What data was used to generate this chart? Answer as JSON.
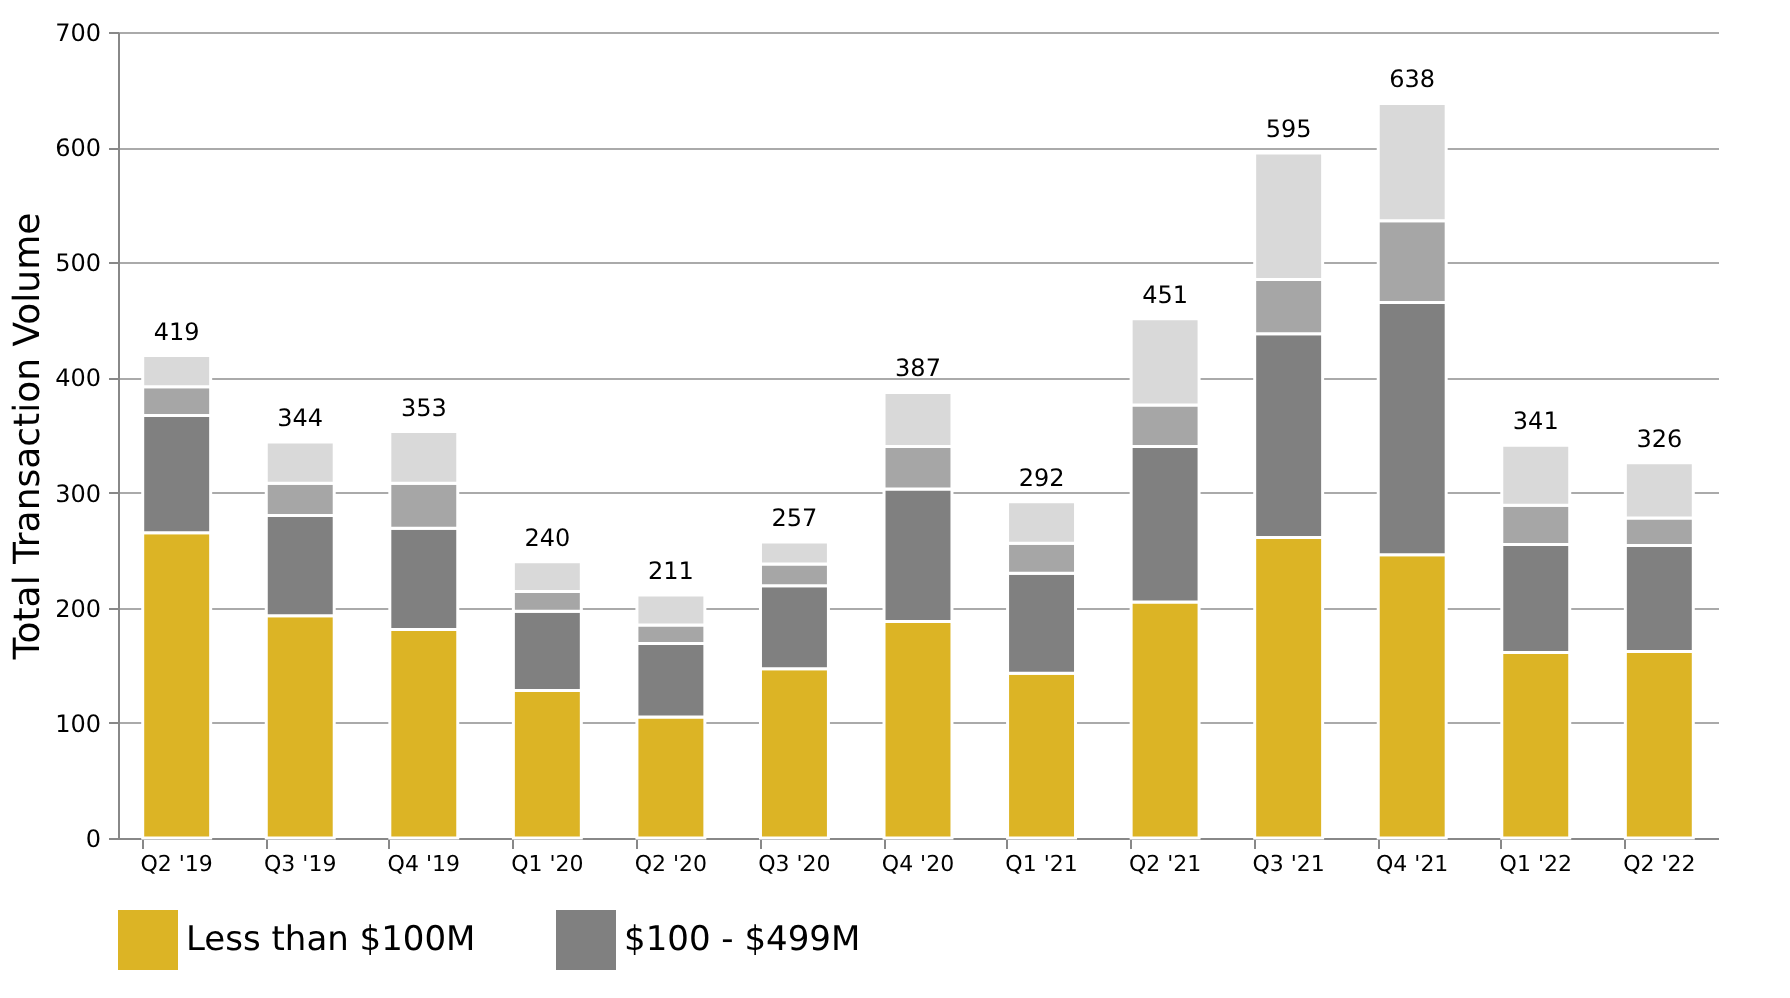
{
  "chart_data": {
    "type": "bar",
    "stacked": true,
    "ylabel": "Total Transaction Volume",
    "categories": [
      "Q2 '19",
      "Q3 '19",
      "Q4 '19",
      "Q1 '20",
      "Q2 '20",
      "Q3 '20",
      "Q4 '20",
      "Q1 '21",
      "Q2 '21",
      "Q3 '21",
      "Q4 '21",
      "Q1 '22",
      "Q2 '22"
    ],
    "series": [
      {
        "name": "Less than $100M",
        "color": "#dcb425",
        "values": [
          265,
          193,
          181,
          128,
          105,
          147,
          188,
          143,
          205,
          261,
          246,
          161,
          162
        ]
      },
      {
        "name": "$100 - $499M",
        "color": "#808080",
        "values": [
          102,
          87,
          88,
          69,
          64,
          72,
          115,
          87,
          135,
          177,
          219,
          94,
          92
        ]
      },
      {
        "color": "#a6a6a6",
        "values": [
          25,
          28,
          39,
          17,
          16,
          19,
          37,
          26,
          36,
          47,
          71,
          34,
          24
        ]
      },
      {
        "color": "#d9d9d9",
        "values": [
          27,
          36,
          45,
          26,
          26,
          19,
          47,
          36,
          75,
          110,
          102,
          52,
          48
        ]
      }
    ],
    "totals": [
      "419",
      "344",
      "353",
      "240",
      "211",
      "257",
      "387",
      "292",
      "451",
      "595",
      "638",
      "341",
      "326"
    ],
    "ylim": [
      0,
      700
    ],
    "yticks": [
      0,
      100,
      200,
      300,
      400,
      500,
      600,
      700
    ],
    "grid": "y",
    "legend": "bottom"
  }
}
